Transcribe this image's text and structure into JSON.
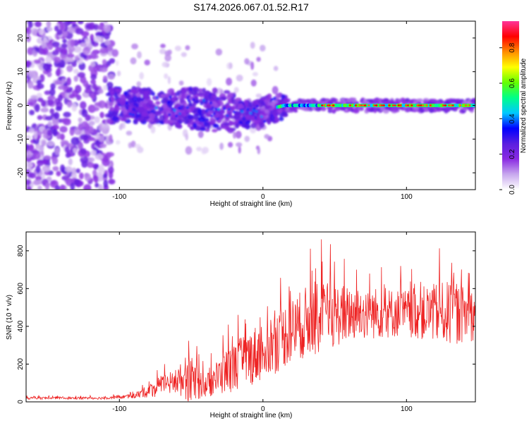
{
  "figure_title": "S174.2026.067.01.52.R17",
  "chart_data": [
    {
      "type": "heatmap",
      "title": "S174.2026.067.01.52.R17",
      "xlabel": "Height of straight line (km)",
      "ylabel": "Frequency (Hz)",
      "xlim": [
        -165,
        148
      ],
      "ylim": [
        -25,
        25
      ],
      "xticks": [
        -100,
        0,
        100
      ],
      "yticks": [
        -20,
        -10,
        0,
        10,
        20
      ],
      "colorbar": {
        "label": "Normalized spectral amplitude",
        "range": [
          0,
          0.95
        ],
        "ticks": [
          "0.0",
          "0.2",
          "0.4",
          "0.6",
          "0.8"
        ],
        "tick_values": [
          0,
          0.2,
          0.4,
          0.6,
          0.8
        ],
        "colors": [
          "#ffffff",
          "#c8a8ee",
          "#8a2be2",
          "#5a1ee0",
          "#0000ff",
          "#00c8ff",
          "#00ff88",
          "#66ff00",
          "#ffff00",
          "#ff8c00",
          "#ff0000",
          "#ff3399"
        ]
      },
      "signal_track": [
        {
          "x": -108,
          "y": 0
        },
        {
          "x": -80,
          "y": 0
        },
        {
          "x": -50,
          "y": -1
        },
        {
          "x": -20,
          "y": -2
        },
        {
          "x": -5,
          "y": -3
        },
        {
          "x": 5,
          "y": -1
        },
        {
          "x": 15,
          "y": 0
        },
        {
          "x": 40,
          "y": 0
        },
        {
          "x": 70,
          "y": 0
        },
        {
          "x": 100,
          "y": 0
        },
        {
          "x": 125,
          "y": 0
        },
        {
          "x": 148,
          "y": 0
        }
      ]
    },
    {
      "type": "line",
      "xlabel": "Height of straight line (km)",
      "ylabel": "SNR (10 * v/v)",
      "xlim": [
        -165,
        148
      ],
      "ylim": [
        0,
        900
      ],
      "xticks": [
        -100,
        0,
        100
      ],
      "yticks": [
        0,
        200,
        400,
        600,
        800
      ],
      "series": [
        {
          "name": "SNR",
          "color": "#ee2222",
          "x_range": [
            -165,
            148
          ],
          "envelope": [
            {
              "x": -165,
              "baseline": 20,
              "amplitude": 15
            },
            {
              "x": -110,
              "baseline": 20,
              "amplitude": 15
            },
            {
              "x": -90,
              "baseline": 30,
              "amplitude": 25
            },
            {
              "x": -75,
              "baseline": 70,
              "amplitude": 100
            },
            {
              "x": -60,
              "baseline": 110,
              "amplitude": 150
            },
            {
              "x": -52,
              "baseline": 130,
              "amplitude": 290
            },
            {
              "x": -40,
              "baseline": 80,
              "amplitude": 130
            },
            {
              "x": -28,
              "baseline": 150,
              "amplitude": 250
            },
            {
              "x": -10,
              "baseline": 230,
              "amplitude": 330
            },
            {
              "x": 5,
              "baseline": 300,
              "amplitude": 380
            },
            {
              "x": 20,
              "baseline": 380,
              "amplitude": 380
            },
            {
              "x": 35,
              "baseline": 440,
              "amplitude": 450
            },
            {
              "x": 60,
              "baseline": 470,
              "amplitude": 330
            },
            {
              "x": 100,
              "baseline": 470,
              "amplitude": 280
            },
            {
              "x": 130,
              "baseline": 470,
              "amplitude": 380
            },
            {
              "x": 148,
              "baseline": 460,
              "amplitude": 300
            }
          ]
        }
      ]
    }
  ]
}
